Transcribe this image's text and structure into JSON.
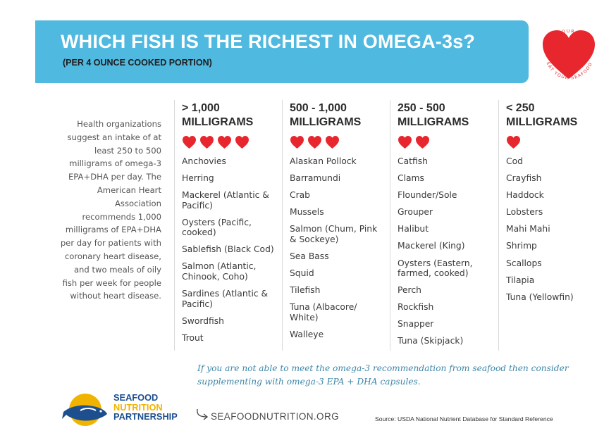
{
  "header": {
    "title": "WHICH FISH IS THE RICHEST IN OMEGA-3s?",
    "subtitle": "(PER 4 OUNCE COOKED PORTION)"
  },
  "badge": {
    "top_text": "LOVE YOUR HEART",
    "bottom_text": "EAT YOUR SEAFOOD",
    "color": "#e8262d"
  },
  "intro": "Health organizations suggest an intake of at least 250 to 500 milligrams of omega-3 EPA+DHA per day. The American Heart Association recommends 1,000 milligrams of EPA+DHA per day for patients with coronary heart disease, and two meals of oily fish per week for people without heart disease.",
  "columns": [
    {
      "heading": "> 1,000\nMILLIGRAMS",
      "hearts": 4,
      "items": [
        "Anchovies",
        "Herring",
        "Mackerel (Atlantic & Pacific)",
        "Oysters (Pacific, cooked)",
        "Sablefish (Black Cod)",
        "Salmon (Atlantic, Chinook, Coho)",
        "Sardines (Atlantic & Pacific)",
        "Swordfish",
        "Trout"
      ]
    },
    {
      "heading": "500 - 1,000\nMILLIGRAMS",
      "hearts": 3,
      "items": [
        "Alaskan Pollock",
        "Barramundi",
        "Crab",
        "Mussels",
        "Salmon (Chum, Pink & Sockeye)",
        "Sea Bass",
        "Squid",
        "Tilefish",
        "Tuna (Albacore/ White)",
        "Walleye"
      ]
    },
    {
      "heading": "250 - 500\nMILLIGRAMS",
      "hearts": 2,
      "items": [
        "Catfish",
        "Clams",
        "Flounder/Sole",
        "Grouper",
        "Halibut",
        "Mackerel (King)",
        "Oysters (Eastern, farmed, cooked)",
        "Perch",
        "Rockfish",
        "Snapper",
        "Tuna (Skipjack)"
      ]
    },
    {
      "heading": "< 250\nMILLIGRAMS",
      "hearts": 1,
      "items": [
        "Cod",
        "Crayfish",
        "Haddock",
        "Lobsters",
        "Mahi Mahi",
        "Shrimp",
        "Scallops",
        "Tilapia",
        "Tuna (Yellowfin)"
      ]
    }
  ],
  "note": "If you are not able to meet the omega-3 recommendation from seafood then consider supplementing with omega-3 EPA + DHA capsules.",
  "footer": {
    "logo_line1": "SEAFOOD",
    "logo_line2": "NUTRITION",
    "logo_line3": "PARTNERSHIP",
    "website": "SEAFOODNUTRITION.ORG",
    "source": "Source: USDA National Nutrient Database for Standard Reference"
  },
  "colors": {
    "banner": "#4fb9e0",
    "heart": "#e8262d",
    "note": "#3d87a8",
    "logo_blue": "#1d4f8f",
    "logo_yellow": "#f0b400"
  }
}
